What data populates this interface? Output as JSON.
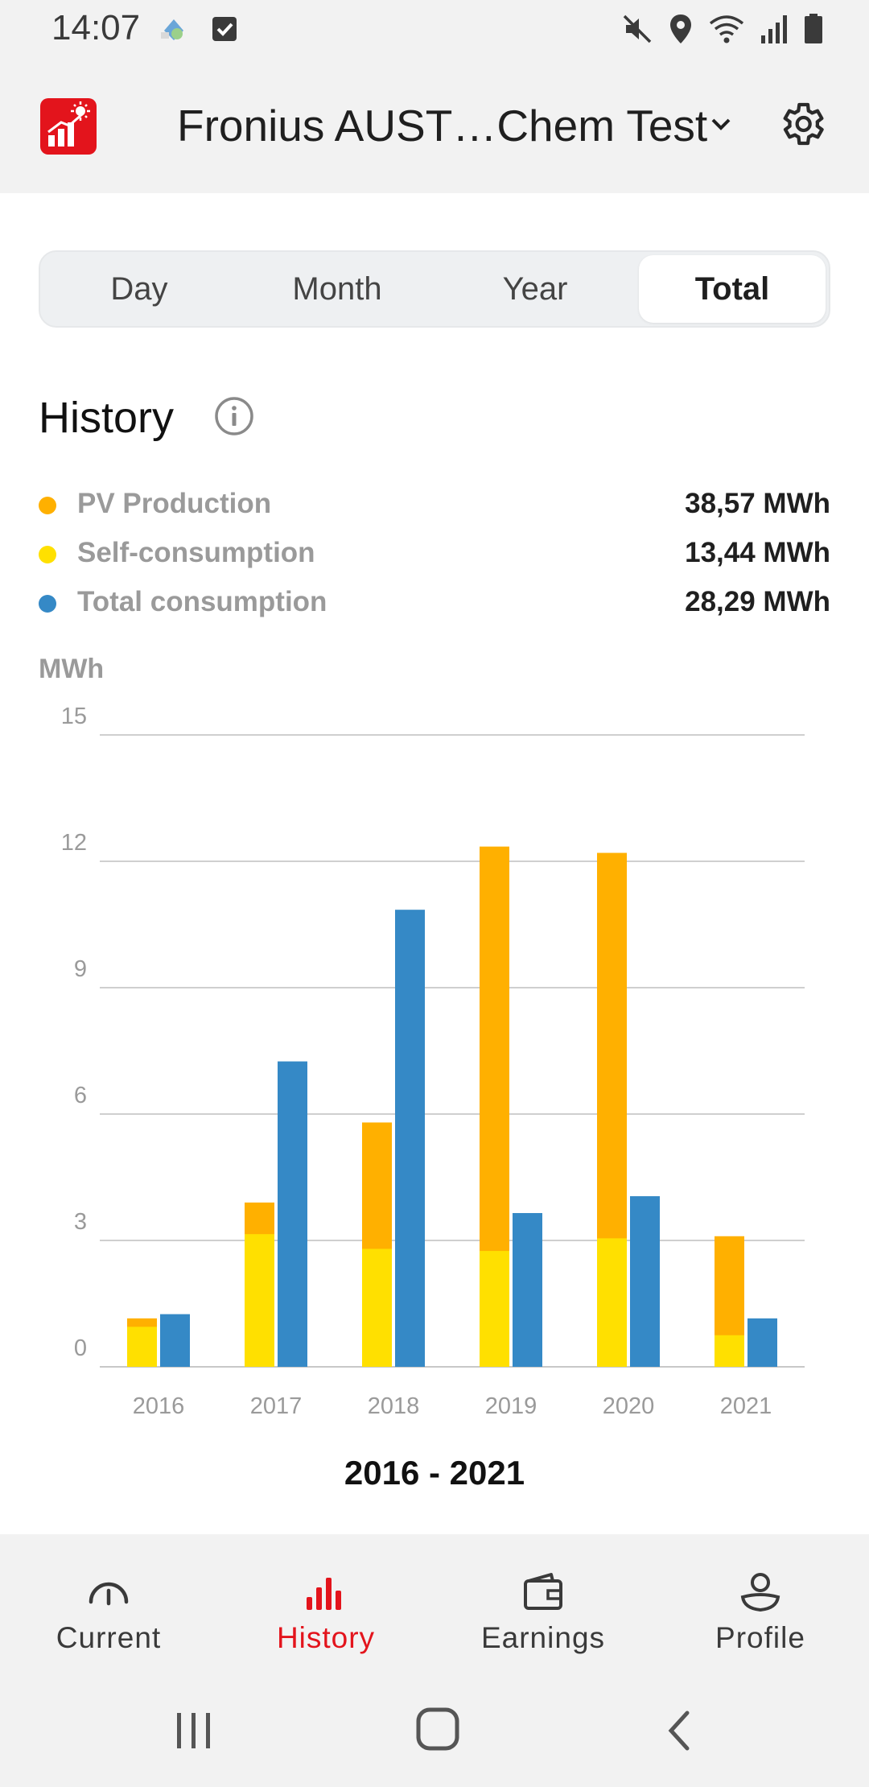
{
  "status_bar": {
    "time": "14:07",
    "left_icons": [
      "app-notification-icon",
      "checkbox-notification-icon"
    ],
    "right_icons": [
      "mute-icon",
      "location-icon",
      "wifi-icon",
      "signal-icon",
      "battery-icon"
    ]
  },
  "app_bar": {
    "site_name": "Fronius AUST…Chem Test",
    "icons": [
      "app-logo-icon",
      "chevron-down-icon",
      "gear-icon"
    ]
  },
  "period_tabs": [
    {
      "label": "Day",
      "active": false
    },
    {
      "label": "Month",
      "active": false
    },
    {
      "label": "Year",
      "active": false
    },
    {
      "label": "Total",
      "active": true
    }
  ],
  "history": {
    "title": "History",
    "legend": [
      {
        "label": "PV Production",
        "value": "38,57 MWh",
        "color": "#FFB000"
      },
      {
        "label": "Self-consumption",
        "value": "13,44 MWh",
        "color": "#FFE000"
      },
      {
        "label": "Total consumption",
        "value": "28,29 MWh",
        "color": "#3589C6"
      }
    ]
  },
  "chart_data": {
    "type": "bar",
    "ylabel": "MWh",
    "ylim": [
      0,
      15
    ],
    "yticks": [
      "0",
      "3",
      "6",
      "9",
      "12",
      "15"
    ],
    "grid": true,
    "categories": [
      "2016",
      "2017",
      "2018",
      "2019",
      "2020",
      "2021"
    ],
    "series": [
      {
        "name": "PV Production",
        "values": [
          1.15,
          3.9,
          5.8,
          12.35,
          12.2,
          3.1
        ],
        "color": "#FFB000"
      },
      {
        "name": "Self-consumption",
        "values": [
          0.95,
          3.15,
          2.8,
          2.75,
          3.05,
          0.75
        ],
        "color": "#FFE000"
      },
      {
        "name": "Total consumption",
        "values": [
          1.25,
          7.25,
          10.85,
          3.65,
          4.05,
          1.15
        ],
        "color": "#3589C6"
      }
    ],
    "period_label": "2016 - 2021"
  },
  "bottom_nav": [
    {
      "label": "Current",
      "icon": "gauge-icon",
      "active": false
    },
    {
      "label": "History",
      "icon": "bar-chart-icon",
      "active": true
    },
    {
      "label": "Earnings",
      "icon": "wallet-icon",
      "active": false
    },
    {
      "label": "Profile",
      "icon": "user-icon",
      "active": false
    }
  ],
  "system_nav": [
    "recent-apps-icon",
    "home-icon",
    "back-icon"
  ]
}
